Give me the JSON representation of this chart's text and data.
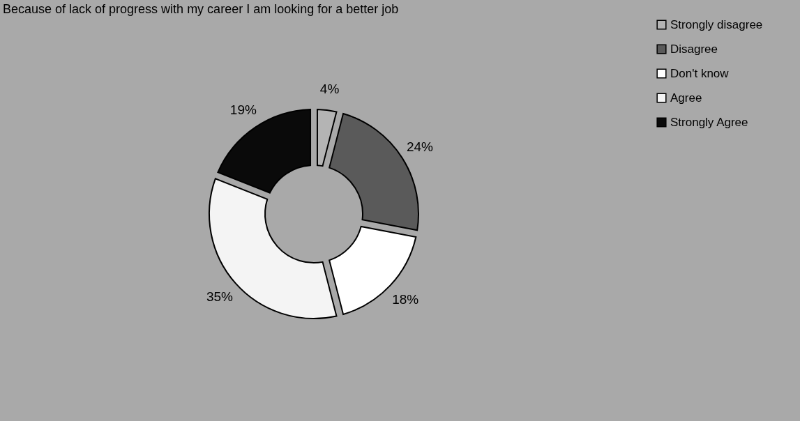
{
  "chart_data": {
    "type": "donut",
    "title": "Because of lack of progress with my career I am looking for a better job",
    "categories": [
      "Strongly disagree",
      "Disagree",
      "Don't know",
      "Agree",
      "Strongly Agree"
    ],
    "values": [
      4,
      24,
      18,
      35,
      19
    ],
    "colors": [
      "#b4b4b4",
      "#5a5a5a",
      "#ffffff",
      "#f4f4f4",
      "#0a0a0a"
    ],
    "value_labels": [
      "4%",
      "24%",
      "18%",
      "35%",
      "19%"
    ],
    "legend": "right"
  }
}
